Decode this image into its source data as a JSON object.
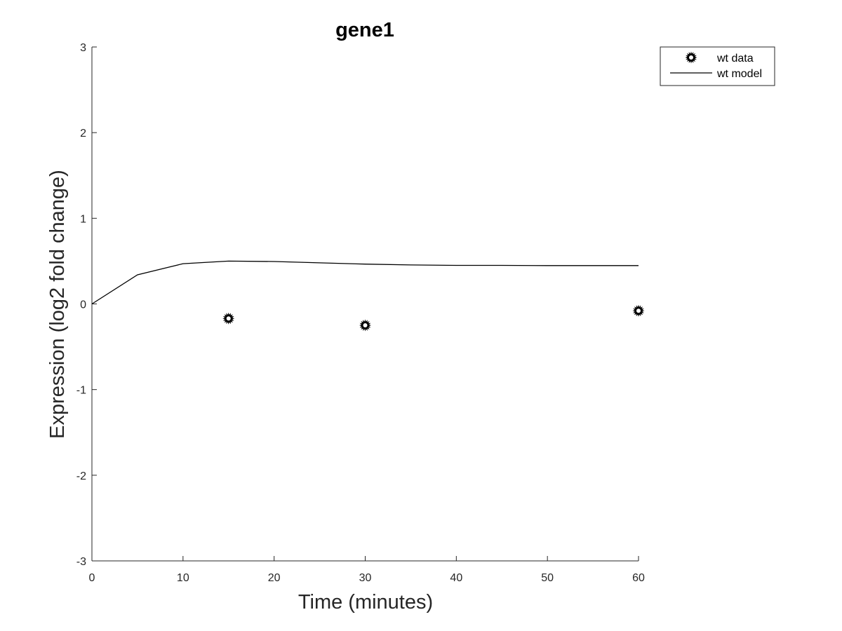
{
  "chart_data": {
    "type": "line",
    "title": "gene1",
    "xlabel": "Time (minutes)",
    "ylabel": "Expression (log2 fold change)",
    "xlim": [
      0,
      60
    ],
    "ylim": [
      -3,
      3
    ],
    "xticks": [
      0,
      10,
      20,
      30,
      40,
      50,
      60
    ],
    "yticks": [
      -3,
      -2,
      -1,
      0,
      1,
      2,
      3
    ],
    "grid": false,
    "legend_position": "top-right, outside plot",
    "series": [
      {
        "name": "wt data",
        "kind": "scatter",
        "marker": "sun-star-icon",
        "color": "#000000",
        "x": [
          15,
          30,
          60
        ],
        "y": [
          -0.17,
          -0.25,
          -0.08
        ]
      },
      {
        "name": "wt model",
        "kind": "line",
        "color": "#000000",
        "x": [
          0,
          5,
          10,
          15,
          20,
          25,
          30,
          35,
          40,
          45,
          50,
          55,
          60
        ],
        "y": [
          0,
          0.34,
          0.47,
          0.5,
          0.495,
          0.48,
          0.465,
          0.455,
          0.45,
          0.45,
          0.448,
          0.448,
          0.448
        ]
      }
    ]
  }
}
